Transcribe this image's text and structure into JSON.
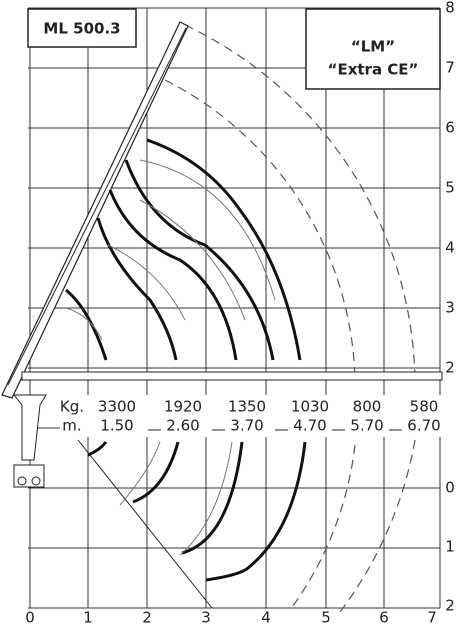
{
  "header": {
    "title": "ML 500.3"
  },
  "note": {
    "line1": "“LM”",
    "line2": "“Extra CE”"
  },
  "x_axis": {
    "labels": [
      "0",
      "1",
      "2",
      "3",
      "4",
      "5",
      "6",
      "7"
    ]
  },
  "y_axis": {
    "upper_labels": [
      "8",
      "7",
      "6",
      "5",
      "4",
      "3",
      "2"
    ],
    "lower_labels": [
      "0",
      "1",
      "2"
    ]
  },
  "table": {
    "load_label": "Kg.",
    "reach_label": "m.",
    "loads": [
      "3300",
      "1920",
      "1350",
      "1030",
      "800",
      "580"
    ],
    "reaches": [
      "1.50",
      "2.60",
      "3.70",
      "4.70",
      "5.70",
      "6.70"
    ]
  }
}
